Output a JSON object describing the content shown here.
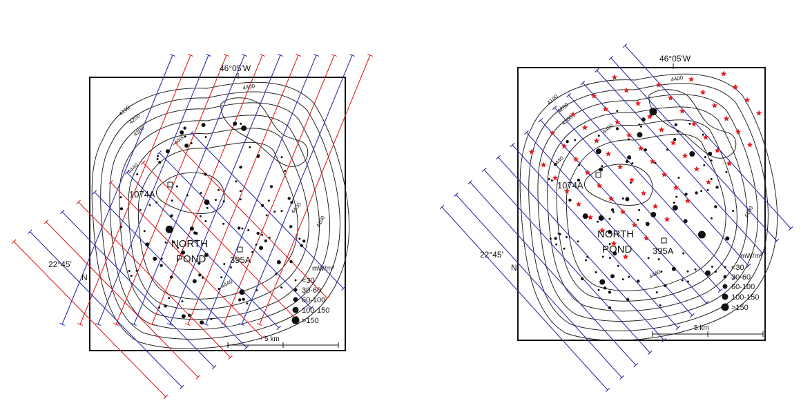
{
  "left_map": {
    "longitude_label": "46°05'W",
    "latitude_label": "22°45'",
    "north_label": "N",
    "basin_name_line1": "NORTH",
    "basin_name_line2": "POND",
    "site_1074A": "1074A",
    "site_395A": "395A",
    "contours": [
      "4100",
      "4200",
      "4300",
      "4400",
      "4440",
      "4400",
      "4100",
      "4440",
      "4400"
    ],
    "legend_title": "mW/m²",
    "legend_items": [
      "<30",
      "30-60",
      "60-100",
      "100-150",
      ">150"
    ],
    "scale_label": "5 km",
    "colors": {
      "survey_line_blue": "#2b2fa6",
      "survey_line_red": "#e02020",
      "frame": "#111111"
    }
  },
  "right_map": {
    "longitude_label": "46°05'W",
    "latitude_label": "22°45'",
    "north_label": "N",
    "basin_name_line1": "NORTH",
    "basin_name_line2": "POND",
    "site_1074A": "1074A",
    "site_395A": "395A",
    "contours": [
      "4100",
      "4200",
      "4300",
      "4400",
      "4440",
      "4400",
      "4100",
      "4440"
    ],
    "legend_title": "mW/m²",
    "legend_items": [
      "<30",
      "30-60",
      "60-100",
      "100-150",
      ">150"
    ],
    "scale_label": "5 km",
    "colors": {
      "survey_line_blue": "#2b2fa6",
      "station_star": "#e02020",
      "frame": "#111111"
    }
  }
}
